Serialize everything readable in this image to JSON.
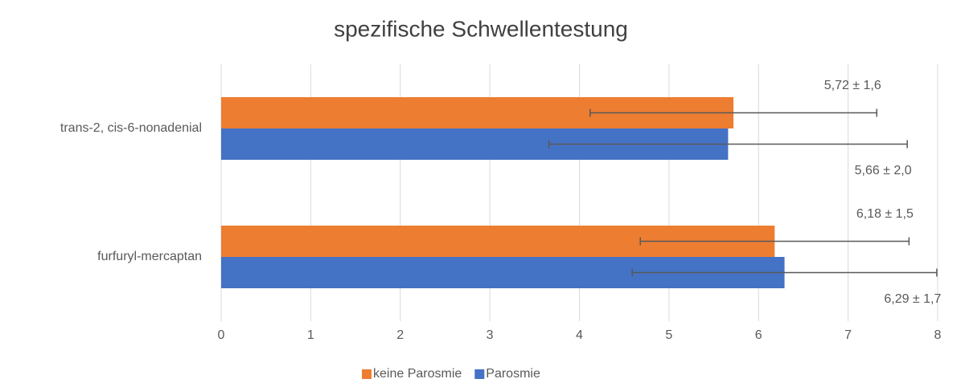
{
  "chart_data": {
    "type": "hbar",
    "title": "spezifische Schwellentestung",
    "categories": [
      "trans-2, cis-6-nonadenial",
      "furfuryl-mercaptan"
    ],
    "series": [
      {
        "name": "keine Parosmie",
        "color": "#ed7d31",
        "values": [
          5.72,
          6.18
        ],
        "errors": [
          1.6,
          1.5
        ],
        "value_labels": [
          "5,72 ± 1,6",
          "6,18 ± 1,5"
        ]
      },
      {
        "name": "Parosmie",
        "color": "#4472c4",
        "values": [
          5.66,
          6.29
        ],
        "errors": [
          2.0,
          1.7
        ],
        "value_labels": [
          "5,66 ± 2,0",
          "6,29 ± 1,7"
        ]
      }
    ],
    "xlim": [
      0,
      8
    ],
    "xticks": [
      0,
      1,
      2,
      3,
      4,
      5,
      6,
      7,
      8
    ],
    "grid": true,
    "legend": "bottom"
  }
}
